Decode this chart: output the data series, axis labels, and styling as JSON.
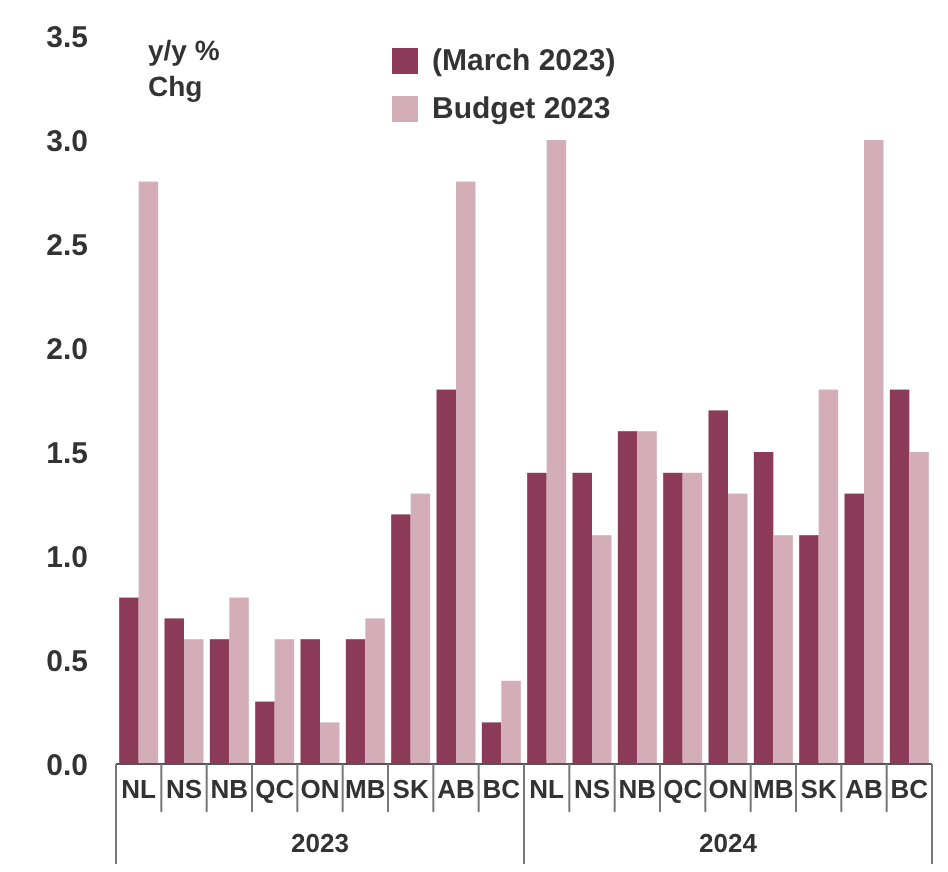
{
  "chart_data": {
    "type": "bar",
    "ylabel": "y/y %\nChg",
    "categories": [
      "NL",
      "NS",
      "NB",
      "QC",
      "ON",
      "MB",
      "SK",
      "AB",
      "BC",
      "NL",
      "NS",
      "NB",
      "QC",
      "ON",
      "MB",
      "SK",
      "AB",
      "BC"
    ],
    "series": [
      {
        "name": "(March 2023)",
        "color": "#8b3a57",
        "values": [
          0.8,
          0.7,
          0.6,
          0.3,
          0.6,
          0.6,
          1.2,
          1.8,
          0.2,
          1.4,
          1.4,
          1.6,
          1.4,
          1.7,
          1.5,
          1.1,
          1.3,
          1.8
        ]
      },
      {
        "name": "Budget 2023",
        "color": "#d3aeb9",
        "values": [
          2.8,
          0.6,
          0.8,
          0.6,
          0.2,
          0.7,
          1.3,
          2.8,
          0.4,
          3.0,
          1.1,
          1.6,
          1.4,
          1.3,
          1.1,
          1.8,
          3.0,
          1.5
        ]
      }
    ],
    "annotations": [
      "2023",
      "2024"
    ],
    "ylim": [
      0,
      3.5
    ],
    "yticks": [
      {
        "value": 0,
        "label": "0.0"
      },
      {
        "value": 0.5,
        "label": "0.5"
      },
      {
        "value": 1,
        "label": "1.0"
      },
      {
        "value": 1.5,
        "label": "1.5"
      },
      {
        "value": 2,
        "label": "2.0"
      },
      {
        "value": 2.5,
        "label": "2.5"
      },
      {
        "value": 3,
        "label": "3.0"
      },
      {
        "value": 3.5,
        "label": "3.5"
      }
    ],
    "grid": false,
    "legend": "top right"
  }
}
